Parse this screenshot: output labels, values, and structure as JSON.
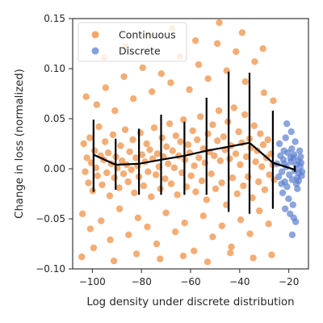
{
  "chart_data": {
    "type": "scatter",
    "xlabel": "Log density under discrete distribution",
    "ylabel": "Change in loss (normalized)",
    "xlim": [
      -108,
      -12
    ],
    "ylim": [
      -0.1,
      0.15
    ],
    "xticks": [
      -100,
      -80,
      -60,
      -40,
      -20
    ],
    "yticks": [
      -0.1,
      -0.05,
      0.0,
      0.05,
      0.1,
      0.15
    ],
    "xtick_labels": [
      "−100",
      "−80",
      "−60",
      "−40",
      "−20"
    ],
    "ytick_labels": [
      "−0.10",
      "−0.05",
      "0.00",
      "0.05",
      "0.10",
      "0.15"
    ],
    "grid": false,
    "legend": {
      "position": "top-left",
      "entries": [
        "Continuous",
        "Discrete"
      ]
    },
    "series": [
      {
        "name": "Continuous",
        "color": "#f08a3b",
        "points": [
          [
            -103.5,
            0.025
          ],
          [
            -102.9,
            -0.003
          ],
          [
            -102.2,
            0.011
          ],
          [
            -101.6,
            -0.014
          ],
          [
            -101.0,
            0.031
          ],
          [
            -100.4,
            0.006
          ],
          [
            -99.8,
            -0.022
          ],
          [
            -99.1,
            0.018
          ],
          [
            -98.5,
            0.001
          ],
          [
            -97.9,
            -0.007
          ],
          [
            -97.3,
            0.042
          ],
          [
            -96.6,
            0.013
          ],
          [
            -96.0,
            -0.016
          ],
          [
            -95.4,
            0.009
          ],
          [
            -94.8,
            0.027
          ],
          [
            -94.1,
            -0.004
          ],
          [
            -93.5,
            0.016
          ],
          [
            -92.9,
            -0.027
          ],
          [
            -92.3,
            0.005
          ],
          [
            -91.6,
            0.034
          ],
          [
            -91.0,
            -0.009
          ],
          [
            -90.4,
            0.012
          ],
          [
            -89.8,
            0.001
          ],
          [
            -89.1,
            -0.019
          ],
          [
            -88.5,
            0.023
          ],
          [
            -87.9,
            0.008
          ],
          [
            -87.3,
            -0.005
          ],
          [
            -86.6,
            0.039
          ],
          [
            -86.0,
            0.004
          ],
          [
            -85.4,
            -0.013
          ],
          [
            -84.8,
            0.017
          ],
          [
            -84.1,
            -0.001
          ],
          [
            -83.5,
            0.029
          ],
          [
            -82.9,
            -0.024
          ],
          [
            -82.3,
            0.011
          ],
          [
            -81.6,
            0.003
          ],
          [
            -81.0,
            -0.008
          ],
          [
            -80.4,
            0.036
          ],
          [
            -79.8,
            0.014
          ],
          [
            -79.1,
            -0.017
          ],
          [
            -78.5,
            0.007
          ],
          [
            -77.9,
            0.025
          ],
          [
            -77.3,
            -0.003
          ],
          [
            -76.6,
            0.019
          ],
          [
            -76.0,
            -0.028
          ],
          [
            -75.4,
            0.01
          ],
          [
            -74.8,
            0.041
          ],
          [
            -74.1,
            -0.006
          ],
          [
            -73.5,
            0.015
          ],
          [
            -72.9,
            0.002
          ],
          [
            -72.3,
            -0.02
          ],
          [
            -71.6,
            0.031
          ],
          [
            -71.0,
            0.012
          ],
          [
            -70.4,
            -0.01
          ],
          [
            -69.8,
            0.022
          ],
          [
            -69.1,
            0.005
          ],
          [
            -68.5,
            0.045
          ],
          [
            -67.9,
            -0.015
          ],
          [
            -67.3,
            0.018
          ],
          [
            -66.6,
            0.001
          ],
          [
            -66.0,
            0.033
          ],
          [
            -65.4,
            -0.026
          ],
          [
            -64.8,
            0.013
          ],
          [
            -64.1,
            0.027
          ],
          [
            -63.5,
            -0.004
          ],
          [
            -62.9,
            0.049
          ],
          [
            -62.3,
            0.009
          ],
          [
            -61.6,
            -0.018
          ],
          [
            -61.0,
            0.024
          ],
          [
            -60.4,
            0.016
          ],
          [
            -59.8,
            -0.007
          ],
          [
            -59.1,
            0.038
          ],
          [
            -58.5,
            0.003
          ],
          [
            -57.9,
            -0.023
          ],
          [
            -57.3,
            0.029
          ],
          [
            -56.6,
            0.011
          ],
          [
            -56.0,
            0.052
          ],
          [
            -55.4,
            -0.012
          ],
          [
            -54.8,
            0.02
          ],
          [
            -54.1,
            0.006
          ],
          [
            -53.5,
            -0.031
          ],
          [
            -52.9,
            0.035
          ],
          [
            -52.3,
            0.017
          ],
          [
            -51.6,
            -0.005
          ],
          [
            -51.0,
            0.044
          ],
          [
            -50.4,
            0.013
          ],
          [
            -49.8,
            -0.02
          ],
          [
            -49.1,
            0.028
          ],
          [
            -48.5,
            0.058
          ],
          [
            -47.9,
            0.008
          ],
          [
            -47.3,
            -0.014
          ],
          [
            -46.6,
            0.032
          ],
          [
            -46.0,
            0.019
          ],
          [
            -45.4,
            -0.036
          ],
          [
            -44.8,
            0.047
          ],
          [
            -44.1,
            0.01
          ],
          [
            -43.5,
            0.023
          ],
          [
            -42.9,
            -0.009
          ],
          [
            -42.3,
            0.061
          ],
          [
            -41.6,
            0.015
          ],
          [
            -41.0,
            -0.025
          ],
          [
            -40.4,
            0.037
          ],
          [
            -39.8,
            0.004
          ],
          [
            -39.1,
            0.026
          ],
          [
            -38.5,
            -0.017
          ],
          [
            -37.9,
            0.054
          ],
          [
            -37.3,
            0.012
          ],
          [
            -36.6,
            -0.008
          ],
          [
            -36.0,
            0.03
          ],
          [
            -35.4,
            0.021
          ],
          [
            -34.8,
            -0.029
          ],
          [
            -34.1,
            0.043
          ],
          [
            -33.5,
            0.007
          ],
          [
            -32.9,
            0.018
          ],
          [
            -32.3,
            -0.013
          ],
          [
            -31.6,
            0.035
          ],
          [
            -31.0,
            0.002
          ],
          [
            -30.4,
            0.024
          ],
          [
            -29.8,
            -0.021
          ],
          [
            -29.1,
            0.011
          ],
          [
            -28.5,
            0.029
          ],
          [
            -27.9,
            -0.006
          ],
          [
            -27.3,
            0.015
          ],
          [
            -26.6,
            0.004
          ],
          [
            -26.0,
            -0.011
          ],
          [
            -104.0,
            -0.045
          ],
          [
            -102.5,
            0.072
          ],
          [
            -100.8,
            -0.06
          ],
          [
            -98.2,
            0.064
          ],
          [
            -96.4,
            -0.052
          ],
          [
            -94.6,
            0.081
          ],
          [
            -92.7,
            -0.071
          ],
          [
            -90.8,
            0.058
          ],
          [
            -88.9,
            -0.04
          ],
          [
            -87.1,
            0.092
          ],
          [
            -85.2,
            -0.066
          ],
          [
            -83.3,
            0.07
          ],
          [
            -81.4,
            -0.049
          ],
          [
            -79.5,
            0.101
          ],
          [
            -77.6,
            -0.058
          ],
          [
            -75.7,
            0.077
          ],
          [
            -73.8,
            -0.075
          ],
          [
            -71.9,
            0.095
          ],
          [
            -70.0,
            -0.044
          ],
          [
            -68.1,
            0.086
          ],
          [
            -66.2,
            -0.063
          ],
          [
            -64.3,
            0.112
          ],
          [
            -62.4,
            -0.054
          ],
          [
            -60.5,
            0.079
          ],
          [
            -58.6,
            -0.082
          ],
          [
            -56.7,
            0.104
          ],
          [
            -54.8,
            -0.047
          ],
          [
            -52.9,
            0.09
          ],
          [
            -51.0,
            -0.068
          ],
          [
            -49.1,
            0.125
          ],
          [
            -47.2,
            -0.057
          ],
          [
            -45.3,
            0.098
          ],
          [
            -43.4,
            -0.078
          ],
          [
            -41.5,
            0.117
          ],
          [
            -39.6,
            -0.051
          ],
          [
            -37.7,
            0.087
          ],
          [
            -35.8,
            -0.065
          ],
          [
            -33.9,
            0.107
          ],
          [
            -32.0,
            -0.042
          ],
          [
            -30.1,
            0.076
          ],
          [
            -28.2,
            -0.055
          ],
          [
            -26.3,
            0.068
          ],
          [
            -104.3,
            -0.088
          ],
          [
            -99.5,
            -0.079
          ],
          [
            -95.2,
            0.111
          ],
          [
            -91.2,
            -0.092
          ],
          [
            -86.4,
            0.122
          ],
          [
            -82.0,
            -0.085
          ],
          [
            -77.0,
            0.133
          ],
          [
            -72.4,
            -0.09
          ],
          [
            -67.5,
            0.14
          ],
          [
            -63.0,
            -0.087
          ],
          [
            -58.0,
            0.128
          ],
          [
            -53.1,
            -0.093
          ],
          [
            -48.3,
            0.146
          ],
          [
            -43.8,
            -0.084
          ],
          [
            -39.0,
            0.136
          ],
          [
            -34.5,
            -0.089
          ],
          [
            -30.5,
            0.12
          ],
          [
            -27.0,
            -0.086
          ]
        ]
      },
      {
        "name": "Discrete",
        "color": "#5b7fcf",
        "points": [
          [
            -24.8,
            0.005
          ],
          [
            -24.1,
            -0.008
          ],
          [
            -23.4,
            0.013
          ],
          [
            -22.8,
            -0.003
          ],
          [
            -22.2,
            0.009
          ],
          [
            -21.6,
            -0.013
          ],
          [
            -21.0,
            0.002
          ],
          [
            -20.4,
            0.016
          ],
          [
            -19.8,
            -0.006
          ],
          [
            -19.2,
            0.007
          ],
          [
            -18.6,
            -0.011
          ],
          [
            -18.1,
            0.011
          ],
          [
            -17.6,
            -0.002
          ],
          [
            -17.1,
            0.004
          ],
          [
            -16.6,
            -0.009
          ],
          [
            -16.2,
            0.008
          ],
          [
            -15.8,
            -0.004
          ],
          [
            -15.4,
            0.002
          ],
          [
            -15.0,
            0.006
          ],
          [
            -14.6,
            -0.003
          ],
          [
            -23.8,
            0.025
          ],
          [
            -22.5,
            -0.024
          ],
          [
            -21.3,
            0.031
          ],
          [
            -20.1,
            -0.03
          ],
          [
            -19.0,
            0.037
          ],
          [
            -18.3,
            -0.036
          ],
          [
            -17.4,
            0.027
          ],
          [
            -16.5,
            -0.02
          ],
          [
            -15.6,
            0.018
          ],
          [
            -16.9,
            -0.015
          ],
          [
            -18.8,
            0.02
          ],
          [
            -20.7,
            -0.018
          ],
          [
            -22.0,
            0.018
          ],
          [
            -17.9,
            0.014
          ],
          [
            -16.0,
            -0.012
          ],
          [
            -15.2,
            0.012
          ],
          [
            -14.8,
            -0.007
          ],
          [
            -19.5,
            -0.045
          ],
          [
            -18.0,
            -0.049
          ],
          [
            -17.2,
            -0.053
          ],
          [
            -18.6,
            -0.066
          ],
          [
            -21.5,
            -0.04
          ],
          [
            -20.8,
            0.045
          ],
          [
            -19.3,
            0.011
          ],
          [
            -21.9,
            0.005
          ],
          [
            -23.0,
            -0.015
          ]
        ]
      }
    ],
    "trend": {
      "name": "binned mean",
      "color": "#000000",
      "x": [
        -99.5,
        -90.5,
        -81.0,
        -72.0,
        -62.5,
        -53.5,
        -44.5,
        -36.0,
        -26.5,
        -17.5
      ],
      "y": [
        0.014,
        0.004,
        0.005,
        0.009,
        0.013,
        0.018,
        0.022,
        0.026,
        0.006,
        -0.001
      ],
      "err_low": [
        -0.023,
        -0.021,
        -0.026,
        -0.026,
        -0.026,
        -0.026,
        -0.043,
        -0.045,
        -0.04,
        -0.003
      ],
      "err_high": [
        0.049,
        0.03,
        0.04,
        0.054,
        0.047,
        0.071,
        0.097,
        0.096,
        0.058,
        0.003
      ]
    }
  }
}
